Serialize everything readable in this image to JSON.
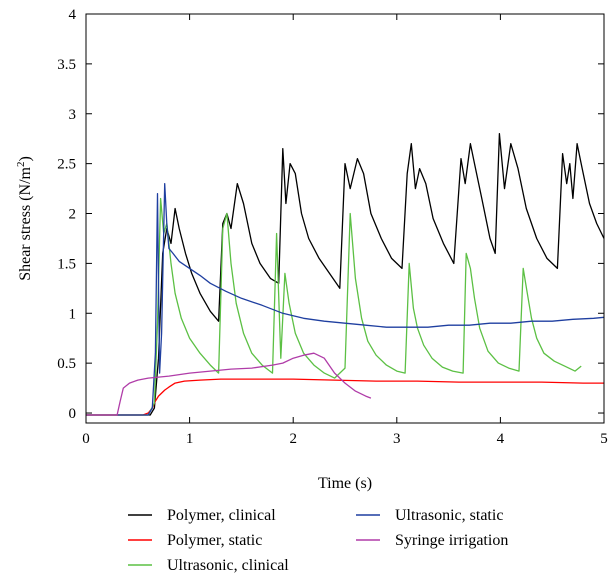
{
  "chart_data": {
    "type": "line",
    "xlabel": "Time (s)",
    "ylabel_main": "Shear stress (N/m",
    "ylabel_sup": "2",
    "ylabel_close": ")",
    "xlim": [
      0,
      5
    ],
    "ylim": [
      -0.1,
      4
    ],
    "x_ticks": [
      0,
      1,
      2,
      3,
      4,
      5
    ],
    "x_tick_labels": [
      "0",
      "1",
      "2",
      "3",
      "4",
      "5"
    ],
    "y_ticks": [
      0,
      0.5,
      1,
      1.5,
      2,
      2.5,
      3,
      3.5,
      4
    ],
    "y_tick_labels": [
      "0",
      "0.5",
      "1",
      "1.5",
      "2",
      "2.5",
      "3",
      "3.5",
      "4"
    ],
    "grid": false,
    "legend_position": "bottom",
    "series": [
      {
        "name": "Polymer, clinical",
        "color": "#000000",
        "x": [
          0,
          0.55,
          0.62,
          0.66,
          0.7,
          0.74,
          0.78,
          0.82,
          0.86,
          0.9,
          0.96,
          1.02,
          1.1,
          1.2,
          1.28,
          1.32,
          1.36,
          1.4,
          1.46,
          1.52,
          1.6,
          1.68,
          1.78,
          1.86,
          1.9,
          1.93,
          1.97,
          2.02,
          2.08,
          2.15,
          2.25,
          2.35,
          2.45,
          2.5,
          2.55,
          2.62,
          2.68,
          2.75,
          2.85,
          2.95,
          3.05,
          3.1,
          3.14,
          3.18,
          3.22,
          3.28,
          3.35,
          3.45,
          3.55,
          3.62,
          3.66,
          3.71,
          3.75,
          3.82,
          3.9,
          3.95,
          3.99,
          4.04,
          4.1,
          4.17,
          4.25,
          4.35,
          4.45,
          4.55,
          4.6,
          4.64,
          4.67,
          4.7,
          4.74,
          4.79,
          4.86,
          4.93,
          5.0
        ],
        "y": [
          -0.02,
          -0.02,
          -0.02,
          0.05,
          0.55,
          1.6,
          1.85,
          1.7,
          2.05,
          1.85,
          1.6,
          1.4,
          1.2,
          1.02,
          0.92,
          1.9,
          2.0,
          1.85,
          2.3,
          2.1,
          1.7,
          1.5,
          1.35,
          1.3,
          2.65,
          2.1,
          2.5,
          2.4,
          2.0,
          1.75,
          1.55,
          1.4,
          1.25,
          2.5,
          2.25,
          2.55,
          2.4,
          2.0,
          1.75,
          1.55,
          1.45,
          2.4,
          2.7,
          2.25,
          2.45,
          2.3,
          1.95,
          1.7,
          1.5,
          2.55,
          2.3,
          2.7,
          2.5,
          2.15,
          1.75,
          1.6,
          2.8,
          2.25,
          2.7,
          2.45,
          2.05,
          1.75,
          1.55,
          1.45,
          2.6,
          2.3,
          2.5,
          2.15,
          2.7,
          2.45,
          2.1,
          1.9,
          1.75
        ]
      },
      {
        "name": "Polymer, static",
        "color": "#ff0000",
        "x": [
          0,
          0.55,
          0.6,
          0.64,
          0.67,
          0.7,
          0.73,
          0.76,
          0.8,
          0.86,
          0.95,
          1.1,
          1.3,
          1.6,
          2.0,
          2.4,
          2.8,
          3.2,
          3.6,
          4.0,
          4.4,
          4.8,
          5.0
        ],
        "y": [
          -0.02,
          -0.02,
          0.0,
          0.05,
          0.12,
          0.17,
          0.2,
          0.23,
          0.26,
          0.3,
          0.32,
          0.33,
          0.34,
          0.34,
          0.34,
          0.33,
          0.32,
          0.32,
          0.31,
          0.31,
          0.31,
          0.3,
          0.3
        ]
      },
      {
        "name": "Ultrasonic, clinical",
        "color": "#5cc044",
        "x": [
          0,
          0.6,
          0.66,
          0.69,
          0.72,
          0.75,
          0.78,
          0.82,
          0.86,
          0.92,
          1.0,
          1.1,
          1.2,
          1.28,
          1.32,
          1.36,
          1.4,
          1.45,
          1.52,
          1.6,
          1.7,
          1.8,
          1.84,
          1.88,
          1.92,
          1.96,
          2.02,
          2.1,
          2.2,
          2.3,
          2.4,
          2.5,
          2.55,
          2.6,
          2.66,
          2.72,
          2.8,
          2.9,
          3.0,
          3.08,
          3.12,
          3.16,
          3.2,
          3.26,
          3.34,
          3.44,
          3.54,
          3.64,
          3.67,
          3.71,
          3.75,
          3.8,
          3.88,
          3.98,
          4.08,
          4.18,
          4.22,
          4.26,
          4.3,
          4.35,
          4.42,
          4.52,
          4.62,
          4.72,
          4.78
        ],
        "y": [
          -0.02,
          -0.02,
          0.1,
          0.9,
          2.15,
          1.8,
          1.9,
          1.5,
          1.2,
          0.95,
          0.75,
          0.6,
          0.48,
          0.4,
          1.85,
          2.0,
          1.5,
          1.1,
          0.8,
          0.6,
          0.48,
          0.4,
          1.8,
          0.55,
          1.4,
          1.1,
          0.8,
          0.6,
          0.48,
          0.4,
          0.35,
          0.45,
          2.0,
          1.35,
          0.95,
          0.72,
          0.58,
          0.48,
          0.42,
          0.4,
          1.5,
          1.05,
          0.85,
          0.68,
          0.55,
          0.46,
          0.42,
          0.4,
          1.6,
          1.45,
          1.15,
          0.85,
          0.62,
          0.5,
          0.45,
          0.42,
          1.45,
          1.2,
          0.95,
          0.75,
          0.6,
          0.52,
          0.47,
          0.42,
          0.47
        ]
      },
      {
        "name": "Ultrasonic, static",
        "color": "#1f3fa0",
        "x": [
          0,
          0.6,
          0.64,
          0.67,
          0.69,
          0.7,
          0.71,
          0.73,
          0.76,
          0.78,
          0.8,
          0.84,
          0.9,
          1.0,
          1.1,
          1.2,
          1.35,
          1.5,
          1.7,
          1.9,
          2.1,
          2.3,
          2.5,
          2.7,
          2.9,
          3.1,
          3.3,
          3.5,
          3.7,
          3.9,
          4.1,
          4.3,
          4.5,
          4.7,
          4.9,
          5.0
        ],
        "y": [
          -0.02,
          -0.02,
          0.05,
          0.6,
          2.2,
          1.3,
          0.4,
          0.8,
          2.3,
          1.9,
          1.65,
          1.6,
          1.52,
          1.45,
          1.38,
          1.3,
          1.22,
          1.15,
          1.08,
          1.0,
          0.95,
          0.92,
          0.9,
          0.88,
          0.86,
          0.86,
          0.86,
          0.88,
          0.88,
          0.9,
          0.9,
          0.92,
          0.92,
          0.94,
          0.95,
          0.96
        ]
      },
      {
        "name": "Syringe irrigation",
        "color": "#b03ca8",
        "x": [
          0,
          0.3,
          0.33,
          0.36,
          0.42,
          0.5,
          0.6,
          0.8,
          1.0,
          1.2,
          1.4,
          1.6,
          1.8,
          1.9,
          2.0,
          2.1,
          2.2,
          2.3,
          2.4,
          2.5,
          2.6,
          2.7,
          2.75
        ],
        "y": [
          -0.02,
          -0.02,
          0.12,
          0.25,
          0.3,
          0.33,
          0.35,
          0.37,
          0.4,
          0.42,
          0.44,
          0.45,
          0.48,
          0.5,
          0.55,
          0.58,
          0.6,
          0.55,
          0.4,
          0.3,
          0.22,
          0.17,
          0.15
        ]
      }
    ]
  }
}
